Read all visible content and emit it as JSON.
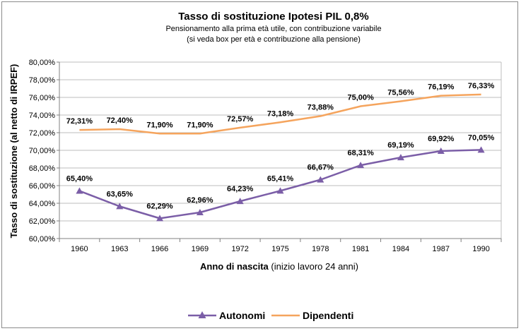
{
  "chart_data": {
    "type": "line",
    "title": "Tasso di sostituzione Ipotesi PIL 0,8%",
    "subtitle_line1": "Pensionamento  alla prima età utile, con contribuzione variabile",
    "subtitle_line2": "(si veda box per età e contribuzione alla pensione)",
    "xlabel_bold": "Anno di nascita",
    "xlabel_rest": " (inizio lavoro 24 anni)",
    "ylabel": "Tasso di sostituzione (al netto di IRPEF)",
    "categories": [
      "1960",
      "1963",
      "1966",
      "1969",
      "1972",
      "1975",
      "1978",
      "1981",
      "1984",
      "1987",
      "1990"
    ],
    "ylim": [
      60,
      80
    ],
    "yticks": [
      60,
      62,
      64,
      66,
      68,
      70,
      72,
      74,
      76,
      78,
      80
    ],
    "ytick_labels": [
      "60,00%",
      "62,00%",
      "64,00%",
      "66,00%",
      "68,00%",
      "70,00%",
      "72,00%",
      "74,00%",
      "76,00%",
      "78,00%",
      "80,00%"
    ],
    "grid": true,
    "legend_position": "bottom",
    "series": [
      {
        "name": "Autonomi",
        "color": "#7b5ea7",
        "marker": "triangle",
        "values": [
          65.4,
          63.65,
          62.29,
          62.96,
          64.23,
          65.41,
          66.67,
          68.31,
          69.19,
          69.92,
          70.05
        ],
        "labels": [
          "65,40%",
          "63,65%",
          "62,29%",
          "62,96%",
          "64,23%",
          "65,41%",
          "66,67%",
          "68,31%",
          "69,19%",
          "69,92%",
          "70,05%"
        ]
      },
      {
        "name": "Dipendenti",
        "color": "#f5a45d",
        "marker": "none",
        "values": [
          72.31,
          72.4,
          71.9,
          71.9,
          72.57,
          73.18,
          73.88,
          75.0,
          75.56,
          76.19,
          76.33
        ],
        "labels": [
          "72,31%",
          "72,40%",
          "71,90%",
          "71,90%",
          "72,57%",
          "73,18%",
          "73,88%",
          "75,00%",
          "75,56%",
          "76,19%",
          "76,33%"
        ]
      }
    ]
  }
}
